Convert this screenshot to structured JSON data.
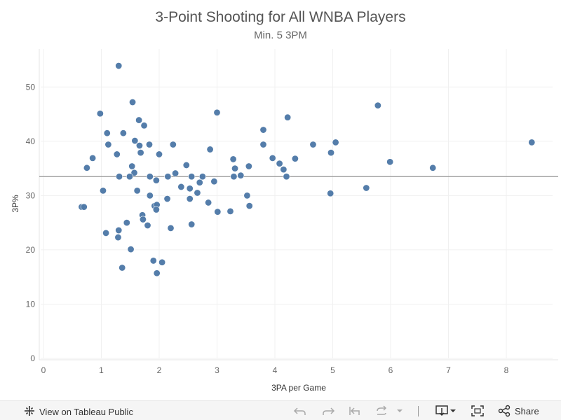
{
  "chart_data": {
    "type": "scatter",
    "title": "3-Point Shooting for All WNBA Players",
    "subtitle": "Min. 5 3PM",
    "xlabel": "3PA per Game",
    "ylabel": "3P%",
    "xlim": [
      0,
      8.8
    ],
    "ylim": [
      0,
      57
    ],
    "x_ticks": [
      0,
      1,
      2,
      3,
      4,
      5,
      6,
      7,
      8
    ],
    "y_ticks": [
      0,
      10,
      20,
      30,
      40,
      50
    ],
    "reference_line_y": 33.5,
    "grid": true,
    "point_color": "#4e79a7",
    "points": [
      {
        "x": 1.3,
        "y": 53.9
      },
      {
        "x": 1.54,
        "y": 47.2
      },
      {
        "x": 0.98,
        "y": 45.1
      },
      {
        "x": 3.0,
        "y": 45.3
      },
      {
        "x": 5.78,
        "y": 46.6
      },
      {
        "x": 4.22,
        "y": 44.4
      },
      {
        "x": 1.65,
        "y": 43.9
      },
      {
        "x": 1.74,
        "y": 42.9
      },
      {
        "x": 1.1,
        "y": 41.5
      },
      {
        "x": 1.38,
        "y": 41.5
      },
      {
        "x": 3.8,
        "y": 42.1
      },
      {
        "x": 1.58,
        "y": 40.1
      },
      {
        "x": 1.66,
        "y": 39.2
      },
      {
        "x": 1.83,
        "y": 39.4
      },
      {
        "x": 1.12,
        "y": 39.4
      },
      {
        "x": 2.24,
        "y": 39.4
      },
      {
        "x": 3.8,
        "y": 39.4
      },
      {
        "x": 4.66,
        "y": 39.4
      },
      {
        "x": 5.05,
        "y": 39.8
      },
      {
        "x": 8.44,
        "y": 39.8
      },
      {
        "x": 2.88,
        "y": 38.5
      },
      {
        "x": 1.68,
        "y": 37.9
      },
      {
        "x": 4.97,
        "y": 37.9
      },
      {
        "x": 1.27,
        "y": 37.6
      },
      {
        "x": 2.0,
        "y": 37.6
      },
      {
        "x": 0.85,
        "y": 36.9
      },
      {
        "x": 3.96,
        "y": 36.9
      },
      {
        "x": 4.35,
        "y": 36.8
      },
      {
        "x": 3.28,
        "y": 36.7
      },
      {
        "x": 4.08,
        "y": 35.9
      },
      {
        "x": 5.99,
        "y": 36.2
      },
      {
        "x": 0.75,
        "y": 35.1
      },
      {
        "x": 1.53,
        "y": 35.4
      },
      {
        "x": 2.47,
        "y": 35.6
      },
      {
        "x": 3.31,
        "y": 35.0
      },
      {
        "x": 3.55,
        "y": 35.4
      },
      {
        "x": 4.15,
        "y": 34.8
      },
      {
        "x": 6.73,
        "y": 35.1
      },
      {
        "x": 1.57,
        "y": 34.2
      },
      {
        "x": 2.28,
        "y": 34.1
      },
      {
        "x": 1.31,
        "y": 33.5
      },
      {
        "x": 1.49,
        "y": 33.5
      },
      {
        "x": 1.84,
        "y": 33.5
      },
      {
        "x": 2.15,
        "y": 33.5
      },
      {
        "x": 2.56,
        "y": 33.5
      },
      {
        "x": 2.75,
        "y": 33.5
      },
      {
        "x": 3.29,
        "y": 33.5
      },
      {
        "x": 3.41,
        "y": 33.7
      },
      {
        "x": 4.2,
        "y": 33.5
      },
      {
        "x": 1.95,
        "y": 32.8
      },
      {
        "x": 2.7,
        "y": 32.4
      },
      {
        "x": 2.95,
        "y": 32.6
      },
      {
        "x": 2.38,
        "y": 31.6
      },
      {
        "x": 2.53,
        "y": 31.3
      },
      {
        "x": 5.58,
        "y": 31.4
      },
      {
        "x": 1.03,
        "y": 30.9
      },
      {
        "x": 1.62,
        "y": 30.9
      },
      {
        "x": 2.66,
        "y": 30.5
      },
      {
        "x": 4.96,
        "y": 30.4
      },
      {
        "x": 1.84,
        "y": 30.0
      },
      {
        "x": 3.52,
        "y": 30.0
      },
      {
        "x": 2.14,
        "y": 29.4
      },
      {
        "x": 2.53,
        "y": 29.4
      },
      {
        "x": 2.85,
        "y": 28.7
      },
      {
        "x": 0.66,
        "y": 27.9
      },
      {
        "x": 0.7,
        "y": 27.9
      },
      {
        "x": 1.92,
        "y": 28.1
      },
      {
        "x": 1.96,
        "y": 28.3
      },
      {
        "x": 3.56,
        "y": 28.1
      },
      {
        "x": 1.95,
        "y": 27.4
      },
      {
        "x": 3.01,
        "y": 27.0
      },
      {
        "x": 3.23,
        "y": 27.1
      },
      {
        "x": 1.71,
        "y": 26.4
      },
      {
        "x": 1.72,
        "y": 25.6
      },
      {
        "x": 1.44,
        "y": 25.0
      },
      {
        "x": 1.8,
        "y": 24.5
      },
      {
        "x": 2.2,
        "y": 24.0
      },
      {
        "x": 2.56,
        "y": 24.7
      },
      {
        "x": 1.3,
        "y": 23.6
      },
      {
        "x": 1.08,
        "y": 23.1
      },
      {
        "x": 1.29,
        "y": 22.3
      },
      {
        "x": 1.51,
        "y": 20.1
      },
      {
        "x": 1.9,
        "y": 18.0
      },
      {
        "x": 2.05,
        "y": 17.7
      },
      {
        "x": 1.36,
        "y": 16.7
      },
      {
        "x": 1.96,
        "y": 15.7
      }
    ]
  },
  "toolbar": {
    "view_label": "View on Tableau Public",
    "share_label": "Share"
  }
}
